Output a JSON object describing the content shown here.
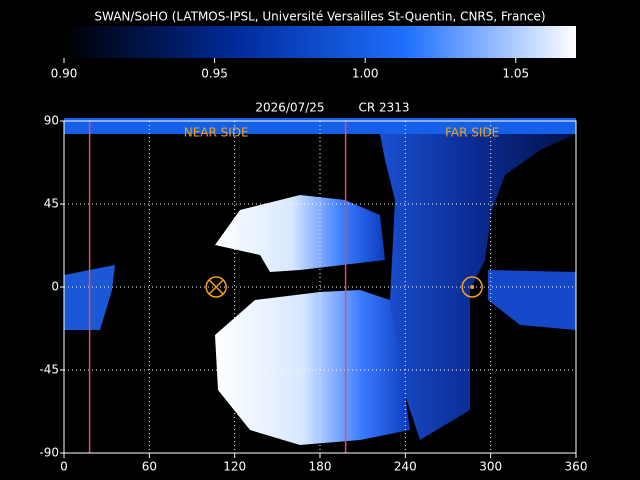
{
  "chart_data": {
    "type": "heatmap",
    "title": "SWAN/SoHO (LATMOS-IPSL, Université Versailles St-Quentin, CNRS, France)",
    "date": "2026/07/25",
    "rotation": "CR 2313",
    "colorbar": {
      "lim": [
        0.9,
        1.07
      ],
      "ticks": [
        {
          "value": 0.9,
          "label": "0.90"
        },
        {
          "value": 0.95,
          "label": "0.95"
        },
        {
          "value": 1.0,
          "label": "1.00"
        },
        {
          "value": 1.05,
          "label": "1.05"
        }
      ],
      "colors": [
        "#000000",
        "#002a99",
        "#1e6fff",
        "#ffffff"
      ]
    },
    "xlim": [
      0,
      360
    ],
    "ylim": [
      -90,
      90
    ],
    "xticks": [
      0,
      60,
      120,
      180,
      240,
      300,
      360
    ],
    "yticks": [
      -90,
      -45,
      0,
      45,
      90
    ],
    "grid": true,
    "lines": [
      18,
      198
    ],
    "line_color": "#d9534f",
    "markers": [
      {
        "label": "NEAR SIDE",
        "x": 107,
        "symbol": "cross"
      },
      {
        "label": "FAR SIDE",
        "x": 287,
        "symbol": "dot"
      }
    ],
    "marker_color": "#f0a020"
  }
}
